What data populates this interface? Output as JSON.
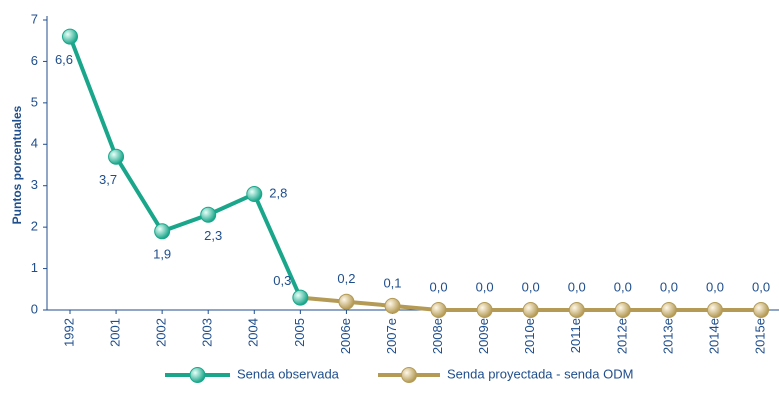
{
  "chart_data": {
    "type": "line",
    "y_label": "Puntos porcentuales",
    "categories": [
      "1992",
      "2001",
      "2002",
      "2003",
      "2004",
      "2005",
      "2006e",
      "2007e",
      "2008e",
      "2009e",
      "2010e",
      "2011e",
      "2012e",
      "2013e",
      "2014e",
      "2015e"
    ],
    "series": [
      {
        "name": "Senda observada",
        "color": "#1aa68a",
        "values": [
          6.6,
          3.7,
          1.9,
          2.3,
          2.8,
          0.3,
          null,
          null,
          null,
          null,
          null,
          null,
          null,
          null,
          null,
          null
        ],
        "value_labels": [
          "6,6",
          "3,7",
          "1,9",
          "2,3",
          "2,8",
          "0,3",
          null,
          null,
          null,
          null,
          null,
          null,
          null,
          null,
          null,
          null
        ]
      },
      {
        "name": "Senda proyectada - senda ODM",
        "color": "#b49a55",
        "values": [
          null,
          null,
          null,
          null,
          null,
          0.3,
          0.2,
          0.1,
          0,
          0,
          0,
          0,
          0,
          0,
          0,
          0
        ],
        "value_labels": [
          null,
          null,
          null,
          null,
          null,
          null,
          "0,2",
          "0,1",
          "0,0",
          "0,0",
          "0,0",
          "0,0",
          "0,0",
          "0,0",
          "0,0",
          "0,0"
        ]
      }
    ],
    "ylim": [
      0,
      7
    ],
    "yticks": [
      0,
      1,
      2,
      3,
      4,
      5,
      6,
      7
    ],
    "grid": false
  }
}
